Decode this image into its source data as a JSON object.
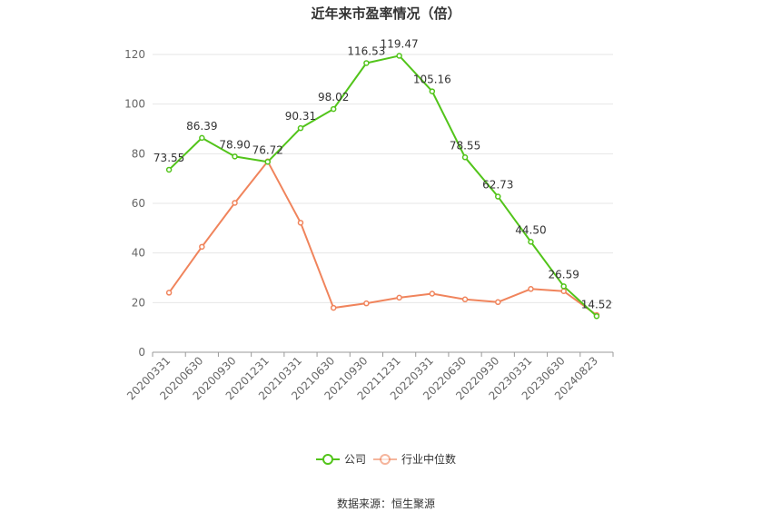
{
  "chart_data": {
    "type": "line",
    "title": "近年来市盈率情况（倍）",
    "categories": [
      "20200331",
      "20200630",
      "20200930",
      "20201231",
      "20210331",
      "20210630",
      "20210930",
      "20211231",
      "20220331",
      "20220630",
      "20220930",
      "20230331",
      "20230630",
      "20240823"
    ],
    "ylim": [
      0,
      120
    ],
    "yticks": [
      0,
      20,
      40,
      60,
      80,
      100,
      120
    ],
    "grid": true,
    "legend_position": "bottom",
    "series": [
      {
        "name": "公司",
        "color": "#52c41a",
        "values": [
          73.55,
          86.39,
          78.9,
          76.72,
          90.31,
          98.02,
          116.53,
          119.47,
          105.16,
          78.55,
          62.73,
          44.5,
          26.59,
          14.52
        ],
        "labels": [
          "73.55",
          "86.39",
          "78.90",
          "76.72",
          "90.31",
          "98.02",
          "116.53",
          "119.47",
          "105.16",
          "78.55",
          "62.73",
          "44.50",
          "26.59",
          "14.52"
        ]
      },
      {
        "name": "行业中位数",
        "color": "#f0845c",
        "values": [
          24.0,
          42.5,
          60.2,
          76.9,
          52.2,
          17.9,
          19.7,
          22.0,
          23.6,
          21.3,
          20.2,
          25.5,
          24.6,
          15.0
        ]
      }
    ],
    "source": "数据来源：恒生聚源"
  }
}
